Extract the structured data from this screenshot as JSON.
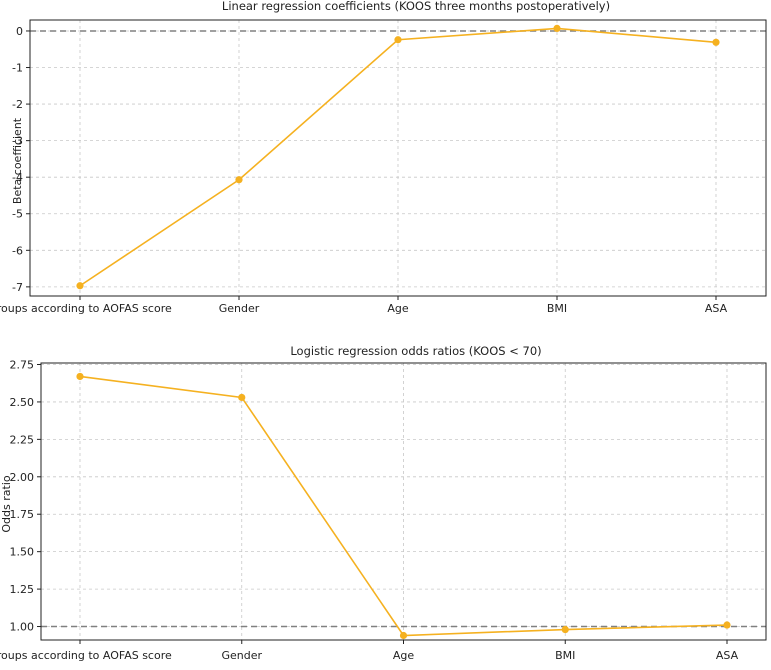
{
  "chart_data": [
    {
      "type": "line",
      "title": "Linear regression coefficients (KOOS three months postoperatively)",
      "xlabel": "",
      "ylabel": "Beta coefficient",
      "categories": [
        "Groups according to AOFAS score",
        "Gender",
        "Age",
        "BMI",
        "ASA"
      ],
      "series": [
        {
          "values": [
            -6.97,
            -4.07,
            -0.24,
            0.07,
            -0.31
          ]
        }
      ],
      "ylim": [
        -7.25,
        0.3
      ],
      "yticks": [
        0,
        -1,
        -2,
        -3,
        -4,
        -5,
        -6,
        -7
      ],
      "ytick_labels": [
        "0",
        "-1",
        "-2",
        "-3",
        "-4",
        "-5",
        "-6",
        "-7"
      ],
      "reference_line": 0,
      "grid": true,
      "legend": "none"
    },
    {
      "type": "line",
      "title": "Logistic regression odds ratios (KOOS < 70)",
      "xlabel": "",
      "ylabel": "Odds ratio",
      "categories": [
        "Groups according to AOFAS score",
        "Gender",
        "Age",
        "BMI",
        "ASA"
      ],
      "series": [
        {
          "values": [
            2.67,
            2.53,
            0.94,
            0.98,
            1.01
          ]
        }
      ],
      "ylim": [
        0.91,
        2.76
      ],
      "yticks": [
        2.75,
        2.5,
        2.25,
        2.0,
        1.75,
        1.5,
        1.25,
        1.0
      ],
      "ytick_labels": [
        "2.75",
        "2.50",
        "2.25",
        "2.00",
        "1.75",
        "1.50",
        "1.25",
        "1.00"
      ],
      "reference_line": 1.0,
      "grid": true,
      "legend": "none"
    }
  ],
  "colors": {
    "series": "#f5b120",
    "reference_line": "#808080",
    "grid": "#c8c8c8",
    "axis": "#222222"
  }
}
